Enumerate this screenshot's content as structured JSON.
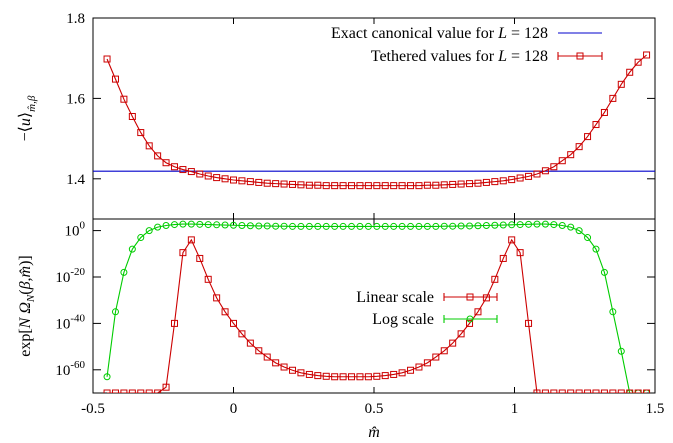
{
  "chart_data": [
    {
      "type": "line",
      "ylabel": "−⟨u⟩m̂,β",
      "xlim": [
        -0.5,
        1.5
      ],
      "ylim": [
        1.3,
        1.8
      ],
      "xticks": [
        -0.5,
        0,
        0.5,
        1,
        1.5
      ],
      "yticks": [
        1.4,
        1.6,
        1.8
      ],
      "ytick_labels": [
        "1.4",
        "1.6",
        "1.8"
      ],
      "legend_position": "top-right",
      "colors": {
        "exact": "#0000cc",
        "tethered": "#cc0000"
      },
      "series": [
        {
          "name": "Exact canonical value for L = 128",
          "style": "hline",
          "value": 1.419
        },
        {
          "name": "Tethered values for L = 128",
          "style": "points-with-errorbars",
          "marker": "square",
          "x": [
            -0.45,
            -0.42,
            -0.39,
            -0.36,
            -0.33,
            -0.3,
            -0.27,
            -0.24,
            -0.21,
            -0.18,
            -0.15,
            -0.12,
            -0.09,
            -0.06,
            -0.03,
            0.0,
            0.03,
            0.06,
            0.09,
            0.12,
            0.15,
            0.18,
            0.21,
            0.24,
            0.27,
            0.3,
            0.33,
            0.36,
            0.39,
            0.42,
            0.45,
            0.48,
            0.51,
            0.54,
            0.57,
            0.6,
            0.63,
            0.66,
            0.69,
            0.72,
            0.75,
            0.78,
            0.81,
            0.84,
            0.87,
            0.9,
            0.93,
            0.96,
            0.99,
            1.02,
            1.05,
            1.08,
            1.11,
            1.14,
            1.17,
            1.2,
            1.23,
            1.26,
            1.29,
            1.32,
            1.35,
            1.38,
            1.41,
            1.44,
            1.47
          ],
          "y": [
            1.698,
            1.648,
            1.598,
            1.555,
            1.515,
            1.482,
            1.457,
            1.44,
            1.43,
            1.423,
            1.418,
            1.412,
            1.407,
            1.403,
            1.4,
            1.397,
            1.395,
            1.393,
            1.391,
            1.389,
            1.388,
            1.387,
            1.386,
            1.385,
            1.384,
            1.384,
            1.383,
            1.383,
            1.383,
            1.383,
            1.383,
            1.383,
            1.383,
            1.383,
            1.383,
            1.383,
            1.383,
            1.383,
            1.384,
            1.384,
            1.385,
            1.386,
            1.387,
            1.388,
            1.389,
            1.391,
            1.393,
            1.395,
            1.398,
            1.402,
            1.406,
            1.412,
            1.42,
            1.43,
            1.445,
            1.46,
            1.48,
            1.505,
            1.535,
            1.565,
            1.6,
            1.635,
            1.665,
            1.69,
            1.708
          ]
        }
      ]
    },
    {
      "type": "line",
      "xlabel": "m̂",
      "ylabel": "exp[N ΩN(β,m̂)]",
      "xlim": [
        -0.5,
        1.5
      ],
      "ylim": [
        -70,
        5
      ],
      "xticks": [
        -0.5,
        0,
        0.5,
        1,
        1.5
      ],
      "xtick_labels": [
        "-0.5",
        "0",
        "0.5",
        "1",
        "1.5"
      ],
      "yticks_log10": [
        0,
        -20,
        -40,
        -60
      ],
      "legend_position": "center",
      "colors": {
        "linear": "#cc0000",
        "log": "#00cc00"
      },
      "series": [
        {
          "name": "Linear scale",
          "marker": "square",
          "x": [
            -0.45,
            -0.42,
            -0.39,
            -0.36,
            -0.33,
            -0.3,
            -0.27,
            -0.24,
            -0.21,
            -0.18,
            -0.15,
            -0.12,
            -0.09,
            -0.06,
            -0.03,
            0.0,
            0.03,
            0.06,
            0.09,
            0.12,
            0.15,
            0.18,
            0.21,
            0.24,
            0.27,
            0.3,
            0.33,
            0.36,
            0.39,
            0.42,
            0.45,
            0.48,
            0.51,
            0.54,
            0.57,
            0.6,
            0.63,
            0.66,
            0.69,
            0.72,
            0.75,
            0.78,
            0.81,
            0.84,
            0.87,
            0.9,
            0.93,
            0.96,
            0.99,
            1.02,
            1.05,
            1.08,
            1.11,
            1.14,
            1.17,
            1.2,
            1.23,
            1.26,
            1.29,
            1.32,
            1.35,
            1.38,
            1.41,
            1.44,
            1.47
          ],
          "log10_y": [
            -70,
            -70,
            -70,
            -70,
            -70,
            -70,
            -70,
            -67.5,
            -40,
            -9.5,
            -4,
            -12,
            -21,
            -29,
            -35,
            -40,
            -44.5,
            -48.5,
            -51.8,
            -54.5,
            -57,
            -58.8,
            -60.2,
            -61.3,
            -62,
            -62.5,
            -62.8,
            -63,
            -63,
            -63,
            -63,
            -63,
            -62.8,
            -62.5,
            -62,
            -61.3,
            -60.2,
            -58.8,
            -57,
            -54.5,
            -51.8,
            -48.5,
            -44.5,
            -40,
            -35,
            -29,
            -21,
            -12,
            -4,
            -9.5,
            -40,
            -70,
            -70,
            -70,
            -70,
            -70,
            -70,
            -70,
            -70,
            -70,
            -70,
            -70,
            -70,
            -70,
            -70
          ]
        },
        {
          "name": "Log scale",
          "marker": "circle",
          "x": [
            -0.45,
            -0.42,
            -0.39,
            -0.36,
            -0.33,
            -0.3,
            -0.27,
            -0.24,
            -0.21,
            -0.18,
            -0.15,
            -0.12,
            -0.09,
            -0.06,
            -0.03,
            0.0,
            0.03,
            0.06,
            0.09,
            0.12,
            0.15,
            0.18,
            0.21,
            0.24,
            0.27,
            0.3,
            0.33,
            0.36,
            0.39,
            0.42,
            0.45,
            0.48,
            0.51,
            0.54,
            0.57,
            0.6,
            0.63,
            0.66,
            0.69,
            0.72,
            0.75,
            0.78,
            0.81,
            0.84,
            0.87,
            0.9,
            0.93,
            0.96,
            0.99,
            1.02,
            1.05,
            1.08,
            1.11,
            1.14,
            1.17,
            1.2,
            1.23,
            1.26,
            1.29,
            1.32,
            1.35,
            1.38,
            1.41,
            1.44,
            1.47
          ],
          "log10_y": [
            -63,
            -35,
            -18,
            -8,
            -3,
            0,
            1.5,
            2.2,
            2.6,
            2.8,
            2.8,
            2.7,
            2.6,
            2.5,
            2.4,
            2.3,
            2.2,
            2.1,
            2,
            2,
            1.9,
            1.9,
            1.8,
            1.8,
            1.8,
            1.8,
            1.8,
            1.8,
            1.8,
            1.8,
            1.8,
            1.8,
            1.8,
            1.8,
            1.8,
            1.8,
            1.8,
            1.8,
            1.8,
            1.8,
            1.9,
            1.9,
            2,
            2,
            2.1,
            2.2,
            2.3,
            2.4,
            2.5,
            2.6,
            2.7,
            2.8,
            2.8,
            2.6,
            2.2,
            1.5,
            0,
            -3,
            -8,
            -18,
            -35,
            -52,
            -70,
            -70,
            -70
          ]
        }
      ]
    }
  ]
}
